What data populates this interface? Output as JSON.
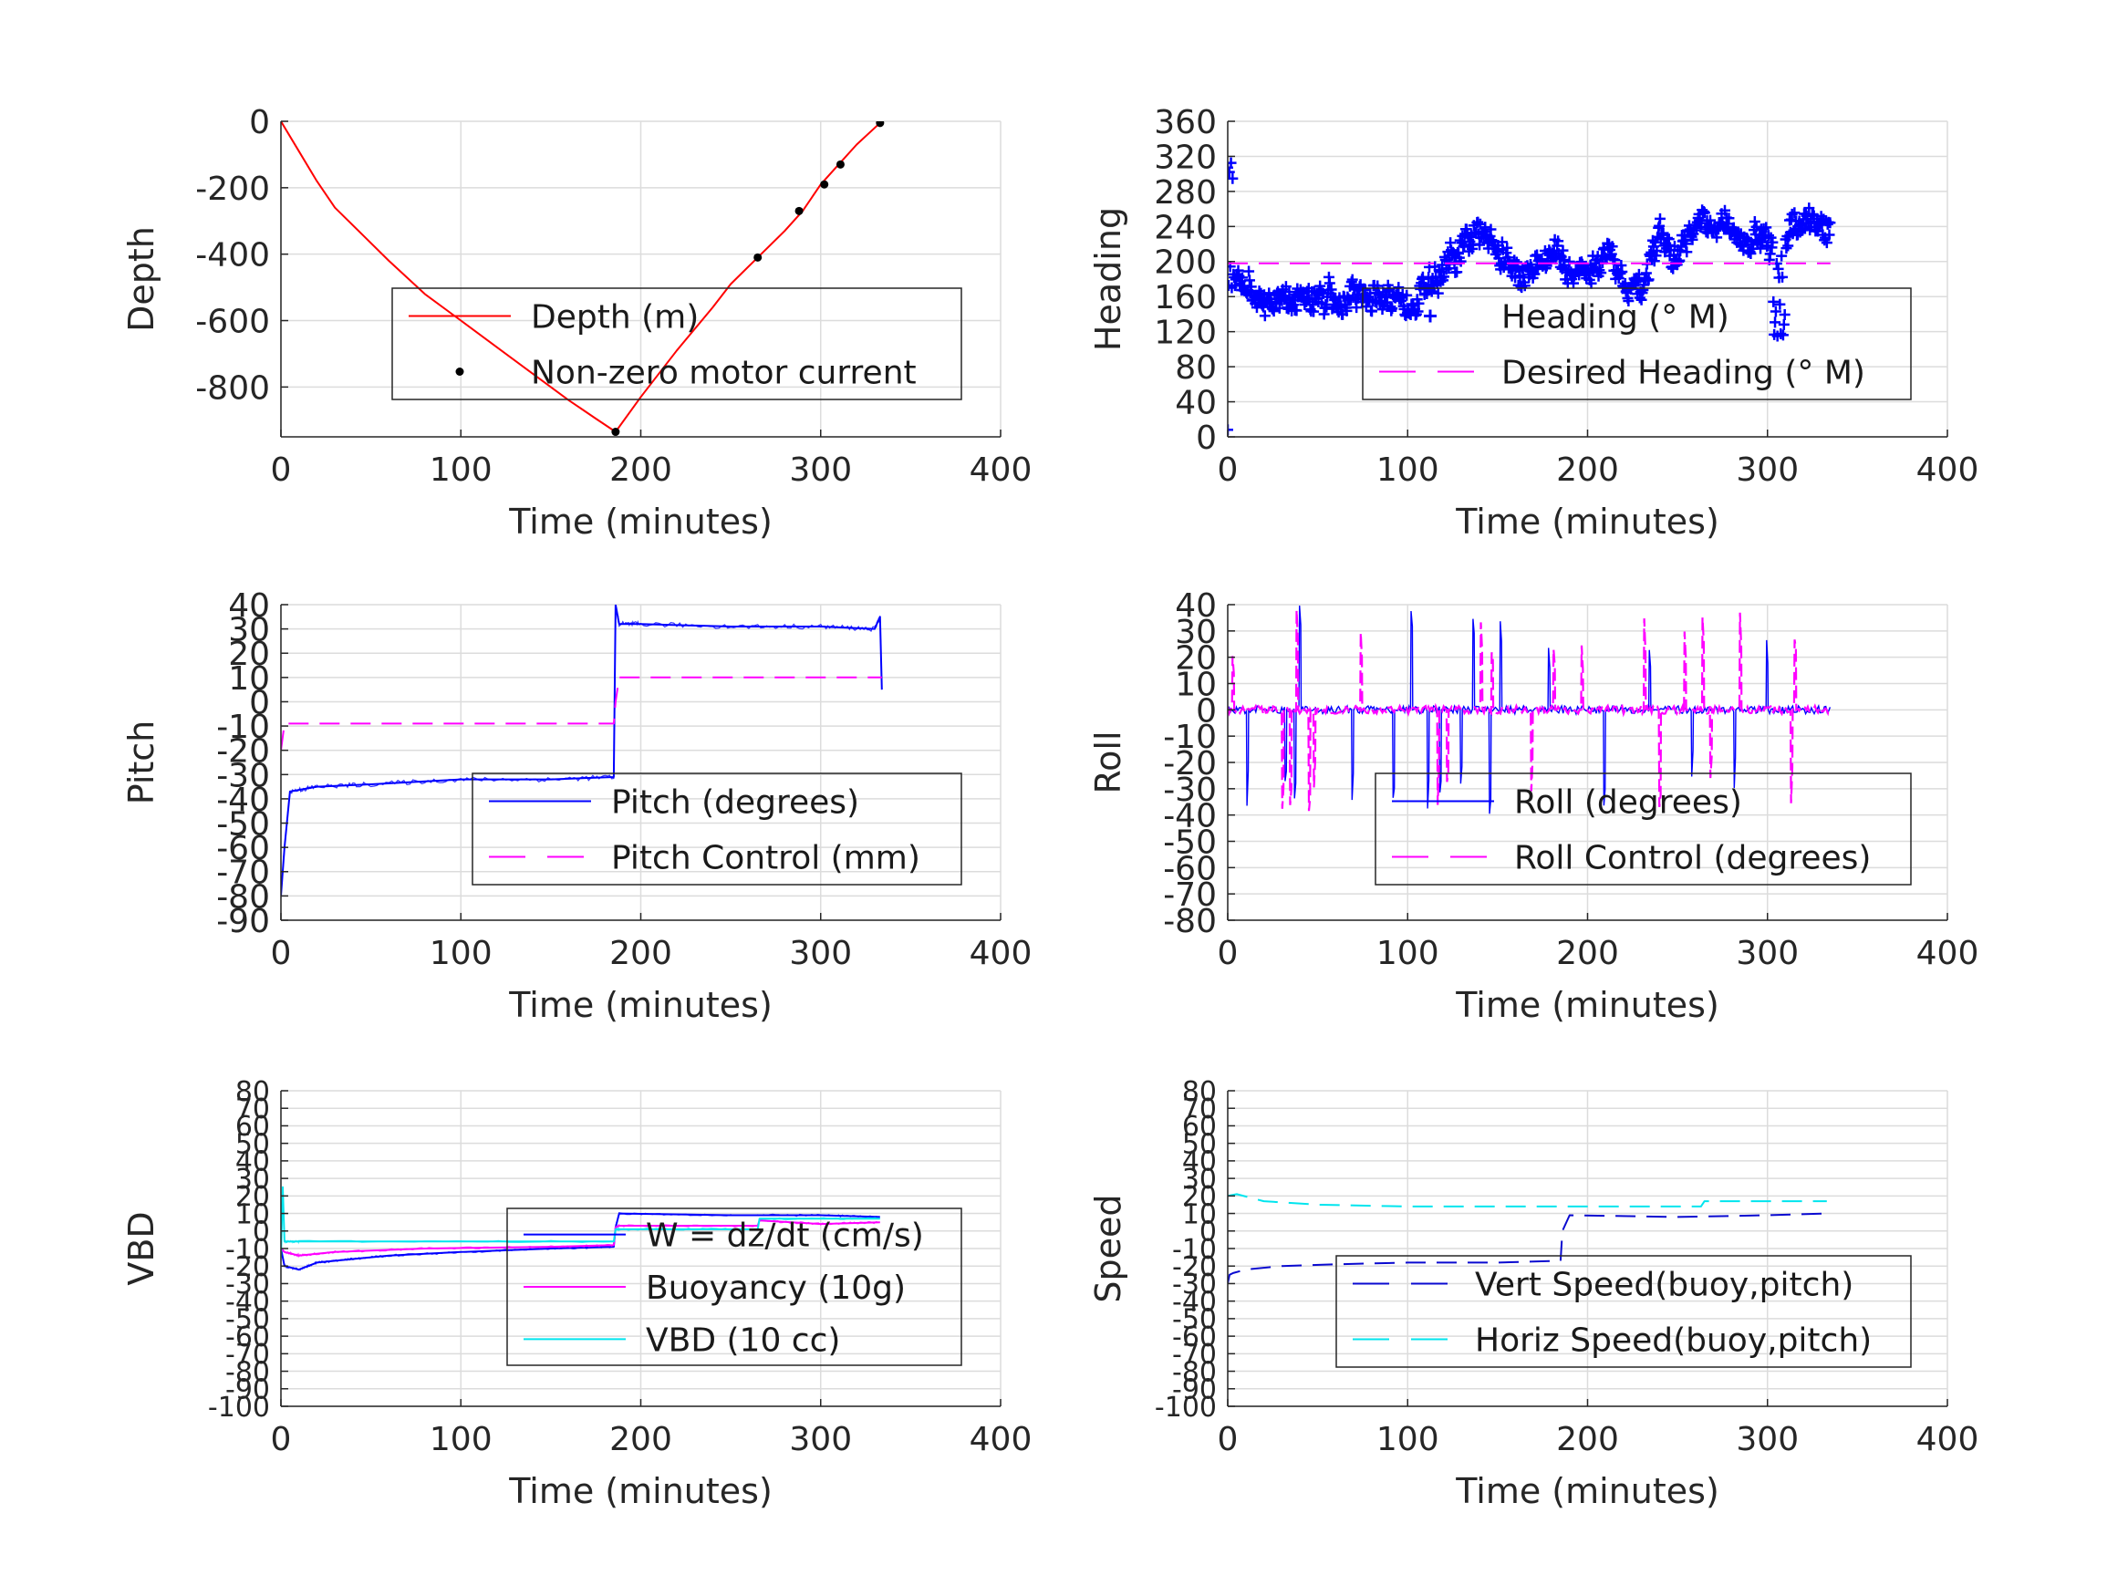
{
  "colors": {
    "red": "#ff0000",
    "blue": "#0000ff",
    "darkblue": "#0a0ad0",
    "magenta": "#ff00ff",
    "cyan": "#00e5ee",
    "black": "#000000"
  },
  "chart_data": [
    {
      "type": "line",
      "xlabel": "Time (minutes)",
      "ylabel": "Depth",
      "xlim": [
        0,
        400
      ],
      "ylim": [
        -950,
        0
      ],
      "xticks": [
        0,
        100,
        200,
        300,
        400
      ],
      "yticks": [
        0,
        -200,
        -400,
        -600,
        -800
      ],
      "grid": true,
      "legend_placement": "center-right",
      "series": [
        {
          "name": "Depth (m)",
          "style": "solid",
          "color": "#ff0000",
          "x": [
            0,
            10,
            20,
            30,
            45,
            60,
            80,
            100,
            120,
            140,
            160,
            175,
            186,
            200,
            220,
            240,
            250,
            265,
            280,
            290,
            300,
            310,
            320,
            333
          ],
          "y": [
            0,
            -90,
            -180,
            -260,
            -340,
            -420,
            -520,
            -600,
            -680,
            -760,
            -840,
            -895,
            -935,
            -830,
            -690,
            -560,
            -490,
            -410,
            -330,
            -270,
            -190,
            -130,
            -70,
            -5
          ]
        },
        {
          "name": "Non-zero motor current",
          "style": "markers-dot",
          "color": "#000000",
          "x": [
            186,
            265,
            288,
            302,
            311,
            333
          ],
          "y": [
            -935,
            -410,
            -270,
            -190,
            -130,
            -5
          ]
        }
      ]
    },
    {
      "type": "line",
      "xlabel": "Time (minutes)",
      "ylabel": "Heading",
      "xlim": [
        0,
        400
      ],
      "ylim": [
        0,
        360
      ],
      "xticks": [
        0,
        100,
        200,
        300,
        400
      ],
      "yticks": [
        0,
        40,
        80,
        120,
        160,
        200,
        240,
        280,
        320,
        360
      ],
      "grid": true,
      "legend_placement": "center-right",
      "series": [
        {
          "name": "Heading (° M)",
          "style": "markers-plus",
          "color": "#0000ff",
          "x_range": [
            0,
            335
          ],
          "center": 195,
          "spread": 25,
          "min": 100,
          "max": 340
        },
        {
          "name": "Desired Heading (° M)",
          "style": "dashed",
          "color": "#ff00ff",
          "x": [
            0,
            335
          ],
          "y": [
            198,
            198
          ]
        }
      ]
    },
    {
      "type": "line",
      "xlabel": "Time (minutes)",
      "ylabel": "Pitch",
      "xlim": [
        0,
        400
      ],
      "ylim": [
        -90,
        40
      ],
      "xticks": [
        0,
        100,
        200,
        300,
        400
      ],
      "yticks": [
        40,
        30,
        20,
        10,
        0,
        -10,
        -20,
        -30,
        -40,
        -50,
        -60,
        -70,
        -80,
        -90
      ],
      "grid": true,
      "legend_placement": "center-right",
      "series": [
        {
          "name": "Pitch (degrees)",
          "style": "solid",
          "color": "#0000ff",
          "x": [
            0,
            2,
            5,
            20,
            50,
            100,
            150,
            185,
            186,
            188,
            200,
            250,
            300,
            330,
            333,
            334
          ],
          "y": [
            -80,
            -60,
            -37,
            -35,
            -34,
            -32,
            -32,
            -31,
            40,
            32,
            32,
            31,
            31,
            30,
            35,
            5
          ]
        },
        {
          "name": "Pitch Control (mm)",
          "style": "dashed",
          "color": "#ff00ff",
          "x": [
            0,
            2,
            185,
            186,
            188,
            334
          ],
          "y": [
            -20,
            -9,
            -9,
            0,
            10,
            10
          ]
        }
      ]
    },
    {
      "type": "line",
      "xlabel": "Time (minutes)",
      "ylabel": "Roll",
      "xlim": [
        0,
        400
      ],
      "ylim": [
        -80,
        40
      ],
      "xticks": [
        0,
        100,
        200,
        300,
        400
      ],
      "yticks": [
        40,
        30,
        20,
        10,
        0,
        -10,
        -20,
        -30,
        -40,
        -50,
        -60,
        -70,
        -80
      ],
      "grid": true,
      "legend_placement": "center-right",
      "series": [
        {
          "name": "Roll (degrees)",
          "style": "solid",
          "color": "#0000ff",
          "x_range": [
            0,
            335
          ],
          "baseline": 0,
          "spike_min": -40,
          "spike_max": 40
        },
        {
          "name": "Roll Control (degrees)",
          "style": "dashed",
          "color": "#ff00ff",
          "x_range": [
            0,
            335
          ],
          "baseline": 0,
          "spike_min": -40,
          "spike_max": 40
        }
      ]
    },
    {
      "type": "line",
      "xlabel": "Time (minutes)",
      "ylabel": "VBD",
      "xlim": [
        0,
        400
      ],
      "ylim": [
        -100,
        80
      ],
      "xticks": [
        0,
        100,
        200,
        300,
        400
      ],
      "yticks": [
        80,
        70,
        60,
        50,
        40,
        30,
        20,
        10,
        0,
        -10,
        -20,
        -30,
        -40,
        -50,
        -60,
        -70,
        -80,
        -90,
        -100
      ],
      "grid": true,
      "legend_placement": "center-right",
      "series": [
        {
          "name": "W = dz/dt (cm/s)",
          "style": "solid",
          "color": "#0000ff",
          "x": [
            0,
            2,
            10,
            20,
            40,
            60,
            100,
            150,
            185,
            186,
            188,
            250,
            300,
            333
          ],
          "y": [
            -10,
            -20,
            -22,
            -18,
            -16,
            -14,
            -12,
            -10,
            -9,
            2,
            10,
            9,
            9,
            8
          ]
        },
        {
          "name": "Buoyancy (10g)",
          "style": "solid",
          "color": "#ff00ff",
          "x": [
            0,
            2,
            10,
            30,
            80,
            150,
            185,
            186,
            188,
            265,
            266,
            300,
            333
          ],
          "y": [
            -10,
            -12,
            -14,
            -12,
            -10,
            -9,
            -8,
            2,
            3,
            3,
            6,
            4,
            5
          ]
        },
        {
          "name": "VBD (10 cc)",
          "style": "solid",
          "color": "#00e5ee",
          "x": [
            0,
            1,
            2,
            10,
            185,
            186,
            188,
            265,
            266,
            333
          ],
          "y": [
            -15,
            25,
            -6,
            -6,
            -6,
            1,
            1,
            1,
            7,
            7
          ]
        }
      ]
    },
    {
      "type": "line",
      "xlabel": "Time (minutes)",
      "ylabel": "Speed",
      "xlim": [
        0,
        400
      ],
      "ylim": [
        -100,
        80
      ],
      "xticks": [
        0,
        100,
        200,
        300,
        400
      ],
      "yticks": [
        80,
        70,
        60,
        50,
        40,
        30,
        20,
        10,
        0,
        -10,
        -20,
        -30,
        -40,
        -50,
        -60,
        -70,
        -80,
        -90,
        -100
      ],
      "grid": true,
      "legend_placement": "center-right",
      "series": [
        {
          "name": "Vert Speed(buoy,pitch)",
          "style": "dashed",
          "color": "#0a0ad0",
          "x": [
            0,
            1,
            3,
            10,
            30,
            60,
            100,
            150,
            183,
            185,
            186,
            190,
            250,
            300,
            333
          ],
          "y": [
            -30,
            -25,
            -24,
            -22,
            -20,
            -19,
            -18,
            -18,
            -17,
            -17,
            0,
            9,
            8,
            9,
            10
          ]
        },
        {
          "name": "Horiz Speed(buoy,pitch)",
          "style": "dashed",
          "color": "#00e5ee",
          "x": [
            0,
            5,
            20,
            50,
            100,
            150,
            200,
            263,
            265,
            300,
            333
          ],
          "y": [
            20,
            21,
            17,
            15,
            14,
            14,
            14,
            14,
            17,
            17,
            17
          ]
        }
      ]
    }
  ]
}
